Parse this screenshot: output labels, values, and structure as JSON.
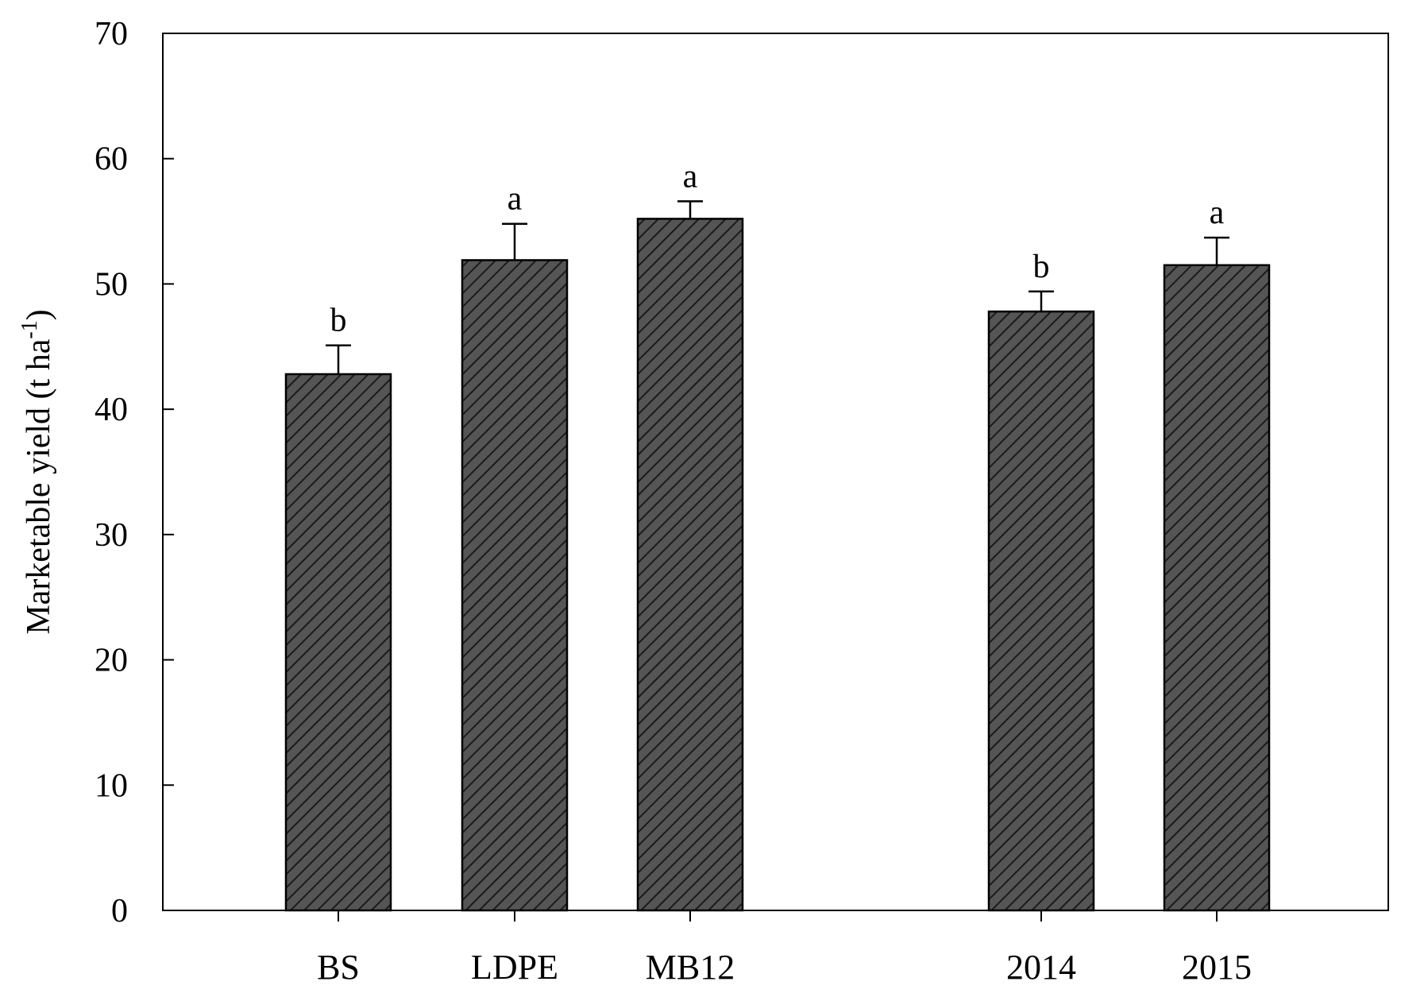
{
  "chart_data": {
    "type": "bar",
    "title": "",
    "xlabel": "",
    "ylabel": "Marketable yield (t ha",
    "ylabel_sup": "-1",
    "ylabel_close": ")",
    "ylim": [
      0,
      70
    ],
    "yticks": [
      "0",
      "10",
      "20",
      "30",
      "40",
      "50",
      "60",
      "70"
    ],
    "grid": false,
    "legend": "none",
    "bar_fill": "#555555",
    "bar_hatch": "diagonal",
    "bars": [
      {
        "category": "BS",
        "value": 42.8,
        "error": 2.3,
        "letter": "b"
      },
      {
        "category": "LDPE",
        "value": 51.9,
        "error": 2.9,
        "letter": "a"
      },
      {
        "category": "MB12",
        "value": 55.2,
        "error": 1.4,
        "letter": "a"
      },
      {
        "category": "2014",
        "value": 47.8,
        "error": 1.6,
        "letter": "b"
      },
      {
        "category": "2015",
        "value": 51.5,
        "error": 2.2,
        "letter": "a"
      }
    ]
  }
}
